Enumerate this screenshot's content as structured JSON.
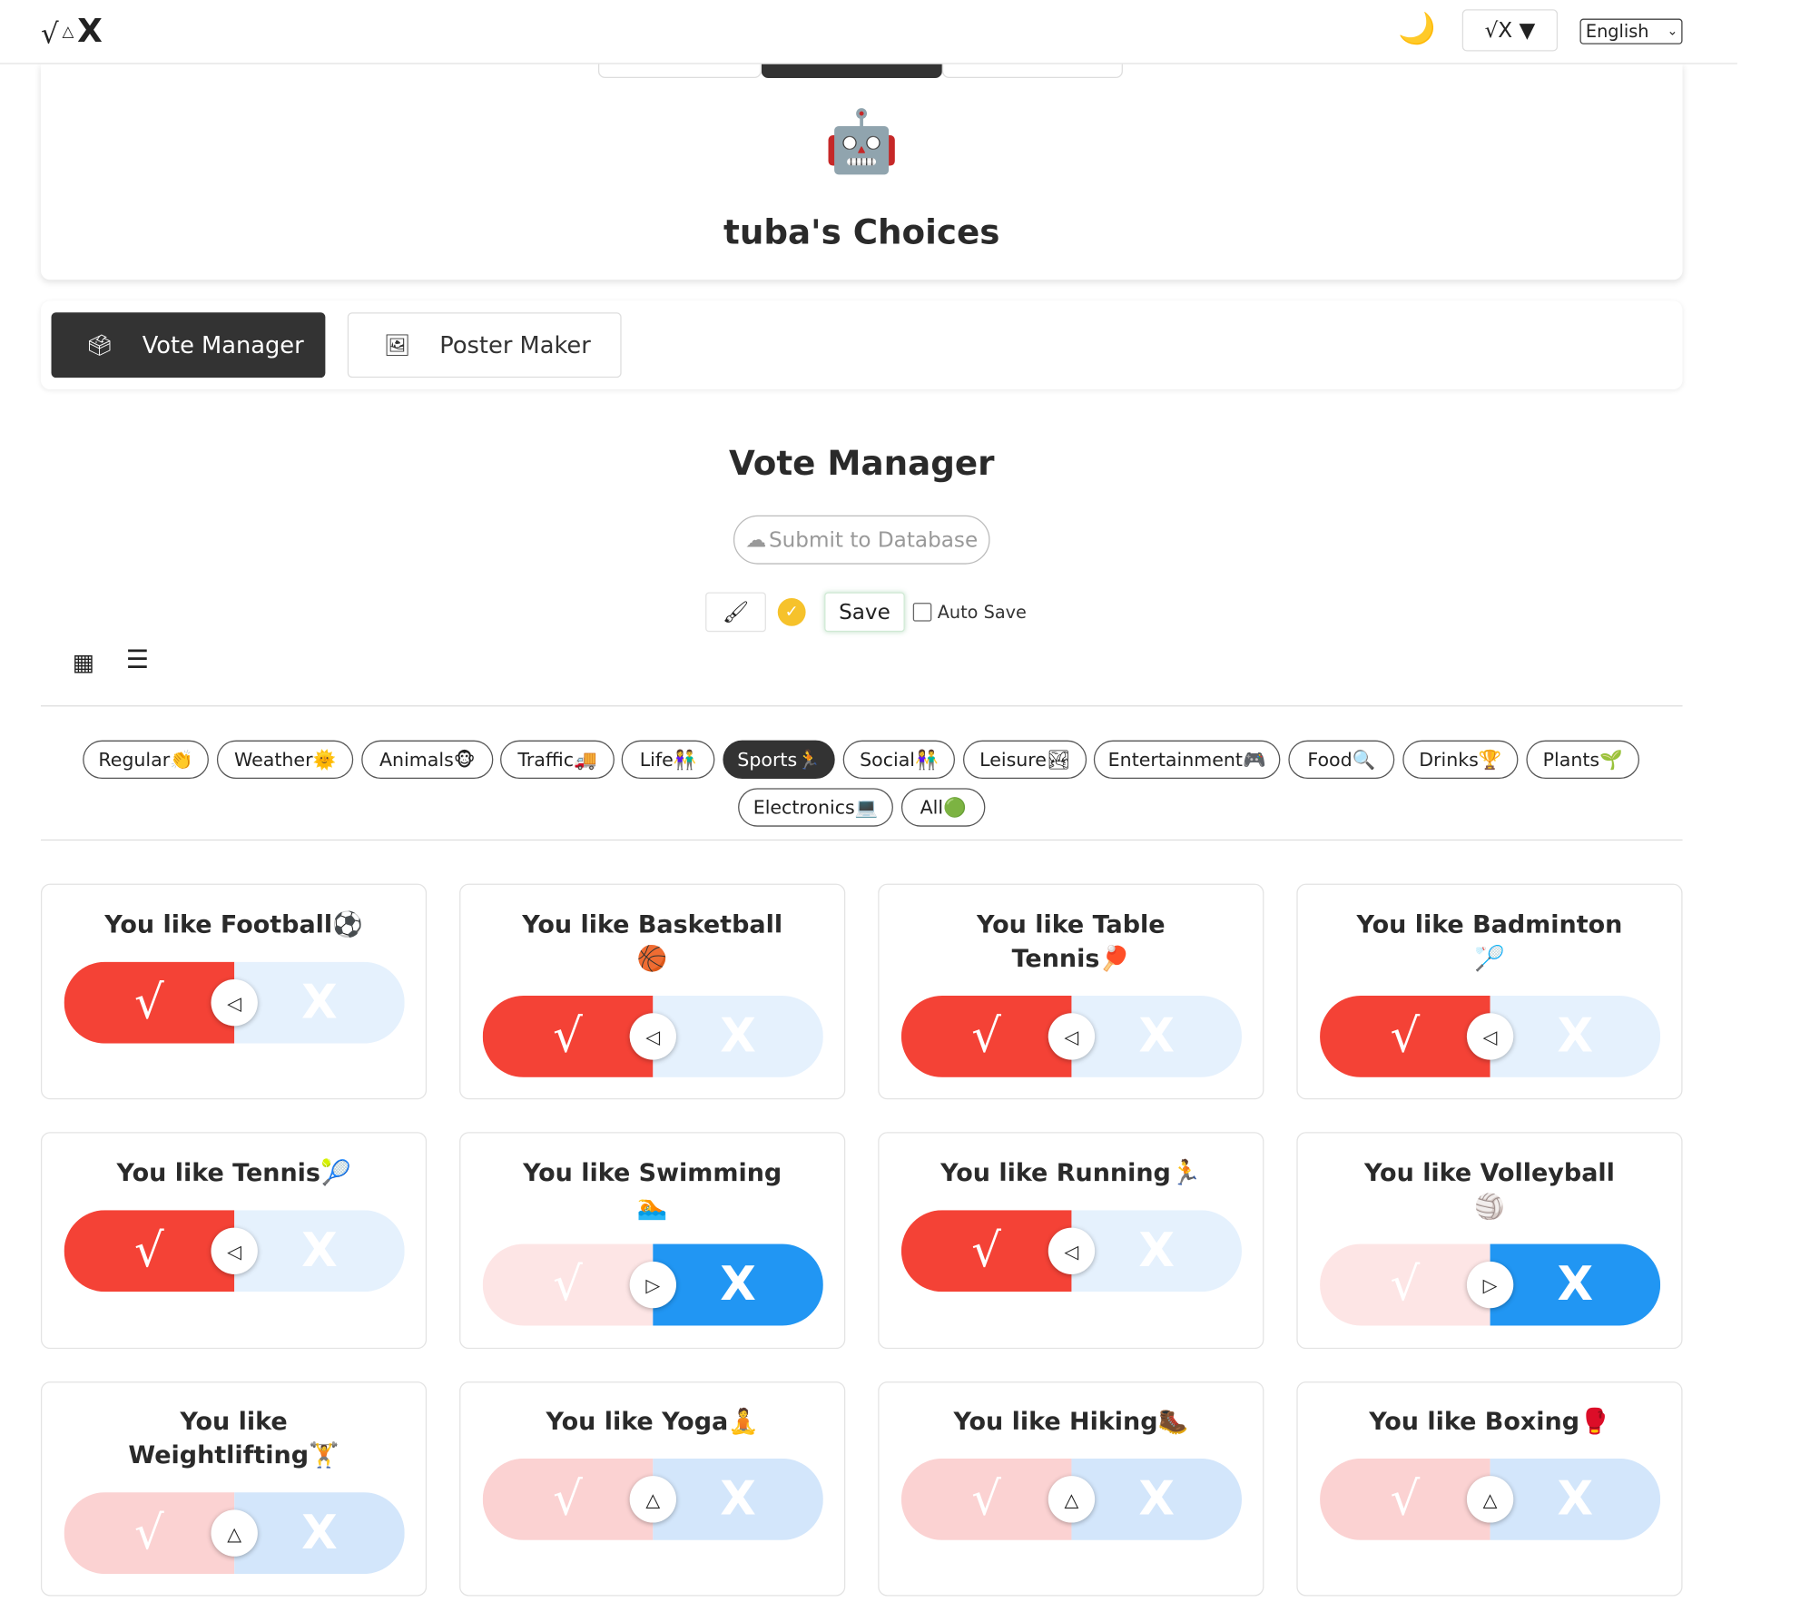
{
  "header": {
    "logo_check": "√",
    "logo_triangle": "△",
    "logo_x": "X",
    "moon_icon": "🌙",
    "mode_label": "√X ▼",
    "language": "English"
  },
  "profile": {
    "avatar": "🤖",
    "title": "tuba's Choices"
  },
  "tabs": [
    {
      "label": "Vote Manager",
      "icon": "🗳",
      "active": true
    },
    {
      "label": "Poster Maker",
      "icon": "🖼",
      "active": false
    }
  ],
  "vote_manager": {
    "title": "Vote Manager",
    "submit_label": "Submit to Database",
    "submit_icon": "☁",
    "brush_icon": "🖌",
    "ok_icon": "✓",
    "save_label": "Save",
    "autosave_label": "Auto Save",
    "grid_view_icon": "▦",
    "list_view_icon": "☰"
  },
  "categories": [
    {
      "label": "Regular👏",
      "active": false
    },
    {
      "label": "Weather🌞",
      "active": false
    },
    {
      "label": "Animals🐵",
      "active": false
    },
    {
      "label": "Traffic🚚",
      "active": false
    },
    {
      "label": "Life👫",
      "active": false
    },
    {
      "label": "Sports🏃",
      "active": true
    },
    {
      "label": "Social👫",
      "active": false
    },
    {
      "label": "Leisure🏞",
      "active": false
    },
    {
      "label": "Entertainment🎮",
      "active": false
    },
    {
      "label": "Food🔍",
      "active": false
    },
    {
      "label": "Drinks🏆",
      "active": false
    },
    {
      "label": "Plants🌱",
      "active": false
    },
    {
      "label": "Electronics💻",
      "active": false
    },
    {
      "label": "All🟢",
      "active": false
    }
  ],
  "cards": [
    {
      "line1": "You like Football⚽",
      "line2": "",
      "state": "yes"
    },
    {
      "line1": "You like Basketball",
      "line2": "🏀",
      "state": "yes"
    },
    {
      "line1": "You like Table",
      "line2": "Tennis🏓",
      "state": "yes"
    },
    {
      "line1": "You like Badminton",
      "line2": "🏸",
      "state": "yes"
    },
    {
      "line1": "You like Tennis🎾",
      "line2": "",
      "state": "yes"
    },
    {
      "line1": "You like Swimming",
      "line2": "🏊",
      "state": "no"
    },
    {
      "line1": "You like Running🏃",
      "line2": "",
      "state": "yes"
    },
    {
      "line1": "You like Volleyball",
      "line2": "🏐",
      "state": "no"
    },
    {
      "line1": "You like",
      "line2": "Weightlifting🏋",
      "state": "neutral"
    },
    {
      "line1": "You like Yoga🧘",
      "line2": "",
      "state": "neutral"
    },
    {
      "line1": "You like Hiking🥾",
      "line2": "",
      "state": "neutral"
    },
    {
      "line1": "You like Boxing🥊",
      "line2": "",
      "state": "neutral"
    }
  ],
  "toggle": {
    "check": "√",
    "x": "X",
    "knob_yes": "◁",
    "knob_no": "▷",
    "knob_neutral": "△"
  }
}
